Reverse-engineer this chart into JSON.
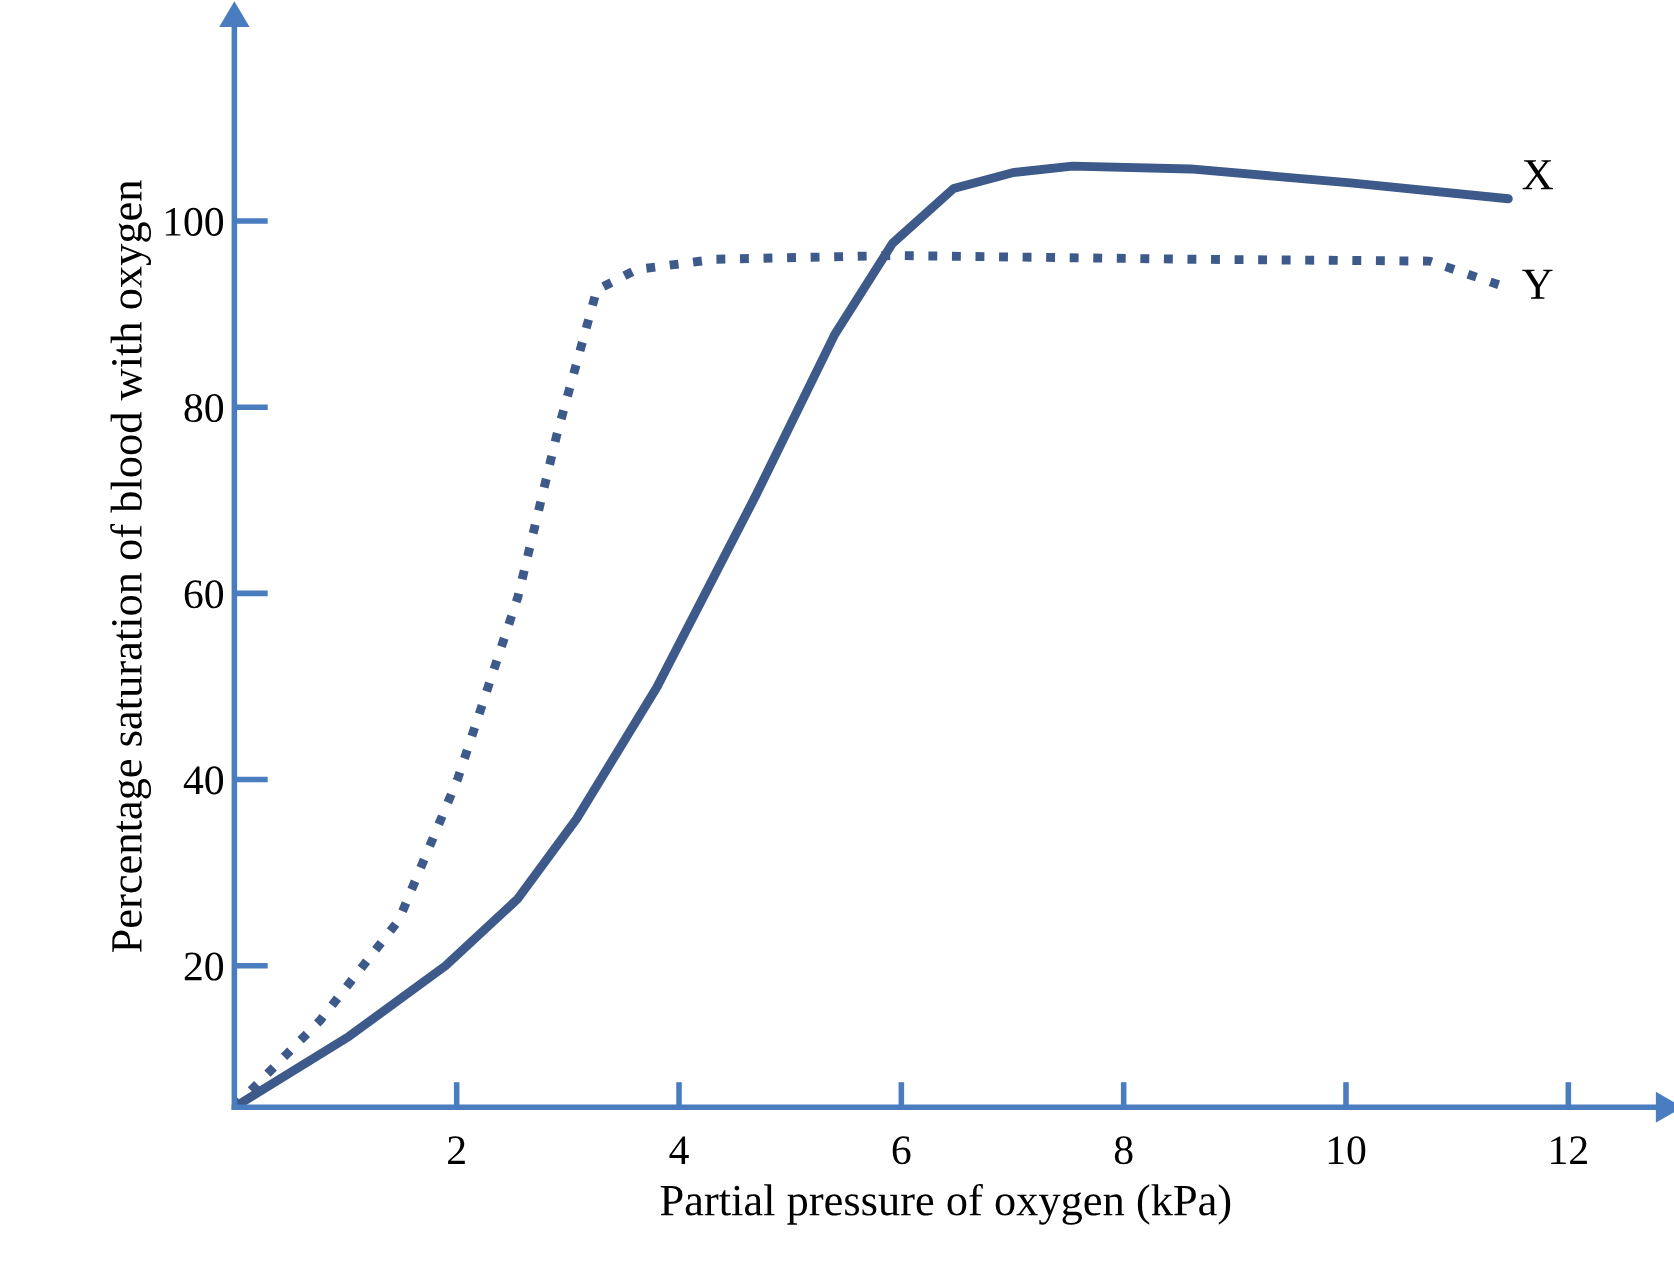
{
  "chart_data": {
    "type": "line",
    "xlabel": "Partial pressure of oxygen (kPa)",
    "ylabel": "Percentage saturation of blood with oxygen",
    "xlim": [
      0,
      12.8
    ],
    "ylim": [
      4.8,
      121
    ],
    "xticks": [
      2,
      4,
      6,
      8,
      10,
      12
    ],
    "yticks": [
      20,
      40,
      60,
      80,
      100
    ],
    "grid": false,
    "legend": false,
    "series": [
      {
        "name": "X",
        "color": "#3d5a8a",
        "line_style": "solid",
        "x": [
          0,
          1.03,
          1.9,
          2.55,
          3.08,
          3.8,
          4.69,
          5.4,
          5.92,
          6.47,
          7.0,
          7.54,
          8.6,
          10.04,
          11.46
        ],
        "values": [
          4.8,
          12.4,
          20,
          27.2,
          35.8,
          49.9,
          70.5,
          87.8,
          97.6,
          103.5,
          105.2,
          105.9,
          105.6,
          104.1,
          102.4
        ]
      },
      {
        "name": "Y",
        "color": "#3d5a8a",
        "line_style": "dotted",
        "x": [
          0,
          0.77,
          1.48,
          2.01,
          2.55,
          2.9,
          3.26,
          3.62,
          4.33,
          5.94,
          8.6,
          10.75,
          11.46
        ],
        "values": [
          4.8,
          14.1,
          24.9,
          40.1,
          59.6,
          77,
          92.6,
          94.8,
          95.9,
          96.3,
          95.9,
          95.7,
          92.8
        ]
      }
    ]
  }
}
